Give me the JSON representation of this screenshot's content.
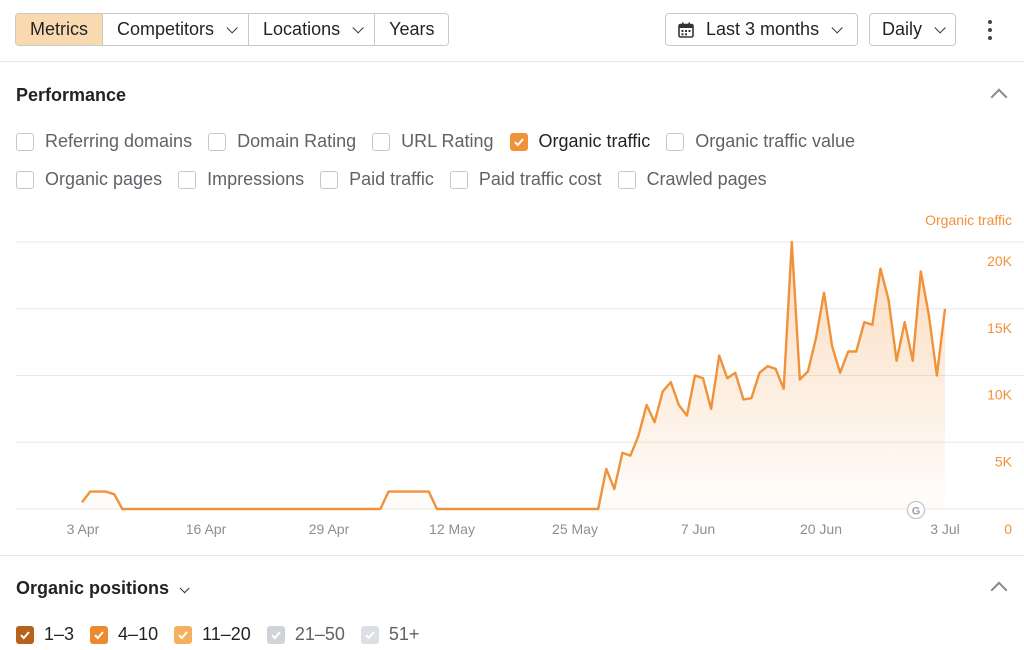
{
  "toolbar": {
    "tabs": [
      {
        "label": "Metrics",
        "active": true
      },
      {
        "label": "Competitors",
        "has_dropdown": true
      },
      {
        "label": "Locations",
        "has_dropdown": true
      },
      {
        "label": "Years"
      }
    ],
    "date_range": "Last 3 months",
    "date_icon": "calendar-icon",
    "frequency": "Daily",
    "more_icon": "more-vertical-icon"
  },
  "performance": {
    "title": "Performance",
    "metrics_row1": [
      {
        "label": "Referring domains",
        "checked": false
      },
      {
        "label": "Domain Rating",
        "checked": false
      },
      {
        "label": "URL Rating",
        "checked": false
      },
      {
        "label": "Organic traffic",
        "checked": true
      },
      {
        "label": "Organic traffic value",
        "checked": false
      }
    ],
    "metrics_row2": [
      {
        "label": "Organic pages",
        "checked": false
      },
      {
        "label": "Impressions",
        "checked": false
      },
      {
        "label": "Paid traffic",
        "checked": false
      },
      {
        "label": "Paid traffic cost",
        "checked": false
      },
      {
        "label": "Crawled pages",
        "checked": false
      }
    ]
  },
  "chart_data": {
    "type": "area",
    "title": "",
    "series": [
      {
        "name": "Organic traffic",
        "color": "#f0923a",
        "values": [
          500,
          1300,
          1300,
          1300,
          1100,
          0,
          0,
          0,
          0,
          0,
          0,
          0,
          0,
          0,
          0,
          0,
          0,
          0,
          0,
          0,
          0,
          0,
          0,
          0,
          0,
          0,
          0,
          0,
          0,
          0,
          0,
          0,
          0,
          0,
          0,
          0,
          0,
          0,
          1300,
          1300,
          1300,
          1300,
          1300,
          1300,
          0,
          0,
          0,
          0,
          0,
          0,
          0,
          0,
          0,
          0,
          0,
          0,
          0,
          0,
          0,
          0,
          0,
          0,
          0,
          0,
          0,
          3000,
          1500,
          4200,
          4000,
          5500,
          7800,
          6500,
          8800,
          9500,
          7800,
          7000,
          10000,
          9800,
          7500,
          11500,
          9800,
          10200,
          8200,
          8300,
          10200,
          10700,
          10500,
          9000,
          20000,
          9700,
          10300,
          12800,
          16200,
          12200,
          10200,
          11800,
          11800,
          14000,
          13800,
          18000,
          15700,
          11100,
          14000,
          11100,
          17800,
          14500,
          10000,
          15000
        ]
      }
    ],
    "x_ticks": [
      "3 Apr",
      "16 Apr",
      "29 Apr",
      "12 May",
      "25 May",
      "7 Jun",
      "20 Jun",
      "3 Jul"
    ],
    "y_ticks": [
      "20K",
      "15K",
      "10K",
      "5K",
      "0"
    ],
    "ylabel": "Organic traffic",
    "ylim": [
      0,
      20000
    ],
    "grid": true,
    "marker_label": "G"
  },
  "positions": {
    "title": "Organic positions",
    "items": [
      {
        "label": "1–3",
        "checked": true,
        "color": "#b4621c"
      },
      {
        "label": "4–10",
        "checked": true,
        "color": "#ec8a2f"
      },
      {
        "label": "11–20",
        "checked": true,
        "color": "#f5b05f"
      },
      {
        "label": "21–50",
        "checked": false,
        "color": "#d0d3d8"
      },
      {
        "label": "51+",
        "checked": false,
        "color": "#dcdfe3"
      }
    ]
  }
}
